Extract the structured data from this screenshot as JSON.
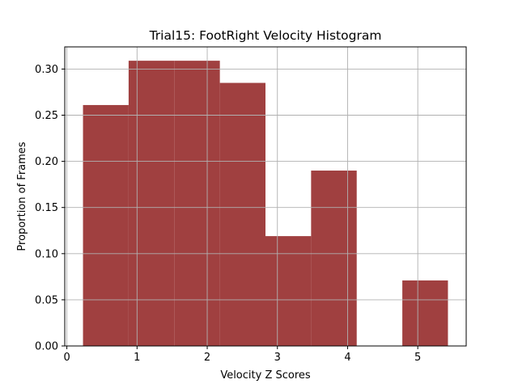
{
  "chart_data": {
    "type": "bar",
    "title": "Trial15: FootRight Velocity Histogram",
    "xlabel": "Velocity Z Scores",
    "ylabel": "Proportion of Frames",
    "bin_edges": [
      0.23,
      0.88,
      1.53,
      2.18,
      2.83,
      3.48,
      4.13,
      4.78,
      5.43
    ],
    "values": [
      0.261,
      0.309,
      0.309,
      0.285,
      0.119,
      0.19,
      0.0,
      0.071
    ],
    "xlim": [
      -0.03,
      5.69
    ],
    "ylim": [
      0,
      0.324
    ],
    "xticks": [
      0,
      1,
      2,
      3,
      4,
      5
    ],
    "xtick_labels": [
      "0",
      "1",
      "2",
      "3",
      "4",
      "5"
    ],
    "yticks": [
      0.0,
      0.05,
      0.1,
      0.15,
      0.2,
      0.25,
      0.3
    ],
    "ytick_labels": [
      "0.00",
      "0.05",
      "0.10",
      "0.15",
      "0.20",
      "0.25",
      "0.30"
    ],
    "grid": true,
    "bar_color": "#a04040",
    "grid_color": "#b0b0b0"
  }
}
